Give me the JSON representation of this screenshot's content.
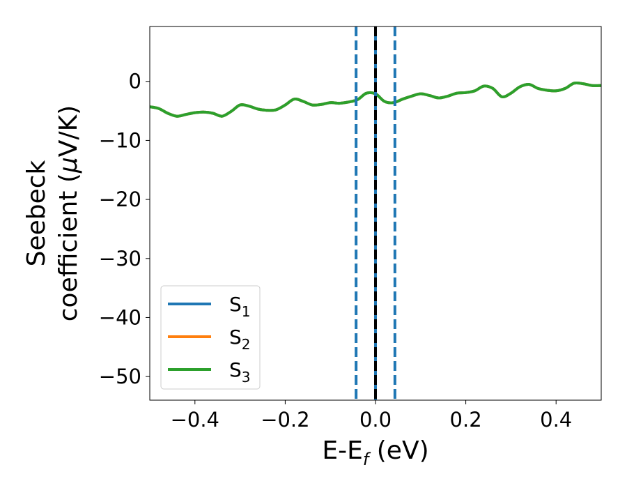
{
  "chart_data": {
    "type": "line",
    "xlabel": {
      "main": "E-E",
      "sub": "f",
      "tail": " (eV)"
    },
    "ylabel": {
      "line1": "Seebeck",
      "line2": "coefficient  (",
      "mu": "μ",
      "line2_tail": "V/K)"
    },
    "xlim": [
      -0.5,
      0.5
    ],
    "ylim": [
      -54,
      9.3
    ],
    "xticks": [
      -0.4,
      -0.2,
      0.0,
      0.2,
      0.4
    ],
    "xtick_labels": [
      "−0.4",
      "−0.2",
      "0.0",
      "0.2",
      "0.4"
    ],
    "yticks": [
      0,
      -10,
      -20,
      -30,
      -40,
      -50
    ],
    "ytick_labels": [
      "0",
      "−10",
      "−20",
      "−30",
      "−40",
      "−50"
    ],
    "grid": false,
    "legend_position": "lower-left",
    "series": [
      {
        "name": "S",
        "sub": "1",
        "color": "#1f77b4",
        "x": [
          -0.5,
          -0.48,
          -0.46,
          -0.44,
          -0.42,
          -0.4,
          -0.38,
          -0.36,
          -0.34,
          -0.32,
          -0.3,
          -0.28,
          -0.26,
          -0.24,
          -0.22,
          -0.2,
          -0.18,
          -0.16,
          -0.14,
          -0.12,
          -0.1,
          -0.08,
          -0.06,
          -0.04,
          -0.02,
          0.0,
          0.02,
          0.04,
          0.06,
          0.08,
          0.1,
          0.12,
          0.14,
          0.16,
          0.18,
          0.2,
          0.22,
          0.24,
          0.26,
          0.28,
          0.3,
          0.32,
          0.34,
          0.36,
          0.38,
          0.4,
          0.42,
          0.44,
          0.46,
          0.48,
          0.5
        ],
        "y": [
          -4.3,
          -4.6,
          -5.4,
          -5.9,
          -5.6,
          -5.3,
          -5.2,
          -5.4,
          -5.9,
          -5.1,
          -4.0,
          -4.2,
          -4.7,
          -4.9,
          -4.8,
          -4.0,
          -3.0,
          -3.4,
          -4.0,
          -3.9,
          -3.6,
          -3.7,
          -3.5,
          -3.1,
          -2.0,
          -2.1,
          -3.4,
          -3.6,
          -3.0,
          -2.5,
          -2.1,
          -2.4,
          -2.8,
          -2.5,
          -2.0,
          -1.9,
          -1.6,
          -0.8,
          -1.2,
          -2.6,
          -2.0,
          -0.9,
          -0.5,
          -1.2,
          -1.5,
          -1.6,
          -1.2,
          -0.3,
          -0.4,
          -0.7,
          -0.7
        ]
      },
      {
        "name": "S",
        "sub": "2",
        "color": "#ff7f0e",
        "x": [
          -0.5,
          -0.48,
          -0.46,
          -0.44,
          -0.42,
          -0.4,
          -0.38,
          -0.36,
          -0.34,
          -0.32,
          -0.3,
          -0.28,
          -0.26,
          -0.24,
          -0.22,
          -0.2,
          -0.18,
          -0.16,
          -0.14,
          -0.12,
          -0.1,
          -0.08,
          -0.06,
          -0.04,
          -0.02,
          0.0,
          0.02,
          0.04,
          0.06,
          0.08,
          0.1,
          0.12,
          0.14,
          0.16,
          0.18,
          0.2,
          0.22,
          0.24,
          0.26,
          0.28,
          0.3,
          0.32,
          0.34,
          0.36,
          0.38,
          0.4,
          0.42,
          0.44,
          0.46,
          0.48,
          0.5
        ],
        "y": [
          -4.3,
          -4.6,
          -5.4,
          -5.9,
          -5.6,
          -5.3,
          -5.2,
          -5.4,
          -5.9,
          -5.1,
          -4.0,
          -4.2,
          -4.7,
          -4.9,
          -4.8,
          -4.0,
          -3.0,
          -3.4,
          -4.0,
          -3.9,
          -3.6,
          -3.7,
          -3.5,
          -3.1,
          -2.0,
          -2.1,
          -3.4,
          -3.6,
          -3.0,
          -2.5,
          -2.1,
          -2.4,
          -2.8,
          -2.5,
          -2.0,
          -1.9,
          -1.6,
          -0.8,
          -1.2,
          -2.6,
          -2.0,
          -0.9,
          -0.5,
          -1.2,
          -1.5,
          -1.6,
          -1.2,
          -0.3,
          -0.4,
          -0.7,
          -0.7
        ]
      },
      {
        "name": "S",
        "sub": "3",
        "color": "#2ca02c",
        "x": [
          -0.5,
          -0.48,
          -0.46,
          -0.44,
          -0.42,
          -0.4,
          -0.38,
          -0.36,
          -0.34,
          -0.32,
          -0.3,
          -0.28,
          -0.26,
          -0.24,
          -0.22,
          -0.2,
          -0.18,
          -0.16,
          -0.14,
          -0.12,
          -0.1,
          -0.08,
          -0.06,
          -0.04,
          -0.02,
          0.0,
          0.02,
          0.04,
          0.06,
          0.08,
          0.1,
          0.12,
          0.14,
          0.16,
          0.18,
          0.2,
          0.22,
          0.24,
          0.26,
          0.28,
          0.3,
          0.32,
          0.34,
          0.36,
          0.38,
          0.4,
          0.42,
          0.44,
          0.46,
          0.48,
          0.5
        ],
        "y": [
          -4.3,
          -4.6,
          -5.4,
          -5.9,
          -5.6,
          -5.3,
          -5.2,
          -5.4,
          -5.9,
          -5.1,
          -4.0,
          -4.2,
          -4.7,
          -4.9,
          -4.8,
          -4.0,
          -3.0,
          -3.4,
          -4.0,
          -3.9,
          -3.6,
          -3.7,
          -3.5,
          -3.1,
          -2.0,
          -2.1,
          -3.4,
          -3.6,
          -3.0,
          -2.5,
          -2.1,
          -2.4,
          -2.8,
          -2.5,
          -2.0,
          -1.9,
          -1.6,
          -0.8,
          -1.2,
          -2.6,
          -2.0,
          -0.9,
          -0.5,
          -1.2,
          -1.5,
          -1.6,
          -1.2,
          -0.3,
          -0.4,
          -0.7,
          -0.7
        ]
      }
    ],
    "vlines": [
      {
        "x": -0.043,
        "style": "dashed",
        "color": "#1f77b4"
      },
      {
        "x": 0.043,
        "style": "dashed",
        "color": "#1f77b4"
      },
      {
        "x": 0.0,
        "style": "solid",
        "color": "#1f77b4"
      },
      {
        "x": 0.0,
        "style": "dashed",
        "color": "#000000"
      }
    ]
  }
}
